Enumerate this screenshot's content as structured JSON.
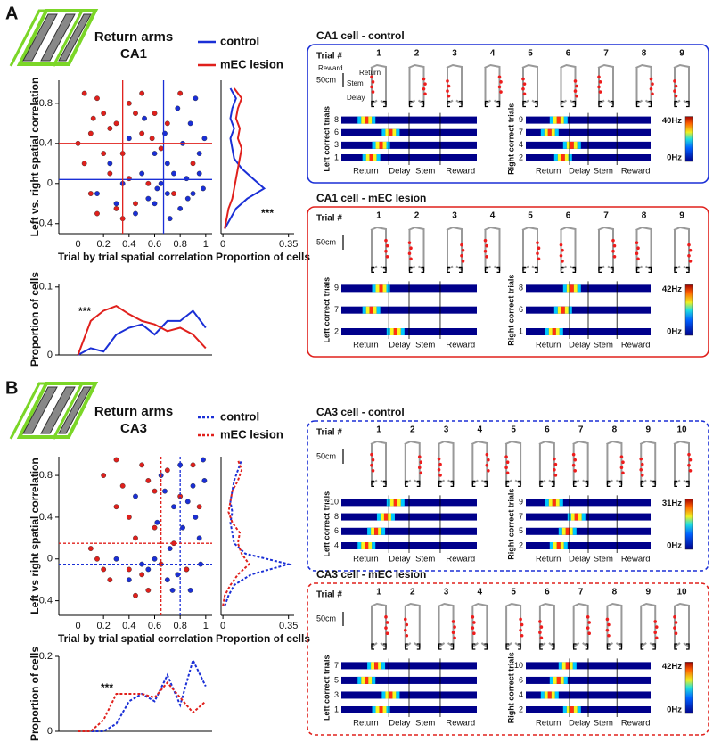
{
  "chart_data": [
    {
      "type": "scatter",
      "title": "Return arms",
      "subtitle": "CA1",
      "x_label": "Trial by trial spatial correlation",
      "y_label": "Left vs. right spatial correlation",
      "xlim": [
        -0.15,
        1.05
      ],
      "xticks": [
        0,
        0.2,
        0.4,
        0.6,
        0.8,
        1
      ],
      "ylim": [
        -0.5,
        1.03
      ],
      "yticks": [
        -0.4,
        0,
        0.4,
        0.8
      ],
      "line_style": "solid",
      "series": [
        {
          "name": "control",
          "color": "#1a2fd6",
          "mean_x": 0.67,
          "mean_y": 0.04,
          "x": [
            0.85,
            0.9,
            0.7,
            0.6,
            0.95,
            0.8,
            0.75,
            0.65,
            0.55,
            0.92,
            0.88,
            0.5,
            0.45,
            0.98,
            0.82,
            0.72,
            0.68,
            0.35,
            0.25,
            0.15,
            0.95,
            0.6,
            0.78,
            0.4,
            0.86,
            0.62,
            0.3,
            0.52,
            0.7,
            0.99
          ],
          "values": [
            0.05,
            -0.1,
            0.2,
            -0.2,
            0.3,
            -0.25,
            0.1,
            0.0,
            -0.15,
            0.85,
            0.6,
            0.1,
            -0.3,
            -0.05,
            0.4,
            -0.35,
            0.5,
            0.0,
            0.2,
            -0.1,
            0.1,
            0.3,
            0.75,
            0.45,
            -0.15,
            -0.05,
            -0.2,
            0.65,
            -0.1,
            0.45
          ]
        },
        {
          "name": "mEC lesion",
          "color": "#e0201c",
          "mean_x": 0.35,
          "mean_y": 0.4,
          "x": [
            0.05,
            0.1,
            0.2,
            0.15,
            0.3,
            0.25,
            0.4,
            0.35,
            0.5,
            0.45,
            0.6,
            0.1,
            0.2,
            0.55,
            0.05,
            0.3,
            0.7,
            0.8,
            0.15,
            0.4,
            0.65,
            0.9,
            0.25,
            0.0,
            0.35,
            0.5,
            0.75,
            0.12,
            0.45,
            0.58
          ],
          "values": [
            0.9,
            0.5,
            0.7,
            -0.3,
            0.6,
            0.1,
            0.8,
            0.3,
            0.5,
            -0.2,
            0.7,
            -0.1,
            0.3,
            0.0,
            0.2,
            -0.25,
            0.6,
            0.9,
            0.85,
            0.05,
            0.35,
            0.2,
            0.55,
            0.4,
            -0.35,
            0.9,
            -0.1,
            0.65,
            0.7,
            0.45
          ]
        }
      ]
    },
    {
      "type": "line",
      "orientation": "horizontal",
      "x_label": "Proportion of cells",
      "annotation": "***",
      "line_style": "solid",
      "xlim": [
        -0.01,
        0.38
      ],
      "xticks": [
        0,
        0.35
      ],
      "ylim": [
        -0.5,
        1.03
      ],
      "y": [
        -0.45,
        -0.35,
        -0.25,
        -0.15,
        -0.05,
        0.05,
        0.15,
        0.25,
        0.35,
        0.45,
        0.55,
        0.65,
        0.75,
        0.85,
        0.95
      ],
      "series": [
        {
          "color": "#1a2fd6",
          "values": [
            0.01,
            0.04,
            0.07,
            0.13,
            0.22,
            0.16,
            0.1,
            0.06,
            0.05,
            0.04,
            0.06,
            0.04,
            0.05,
            0.07,
            0.04
          ]
        },
        {
          "color": "#e0201c",
          "values": [
            0.01,
            0.02,
            0.03,
            0.05,
            0.06,
            0.07,
            0.08,
            0.09,
            0.1,
            0.08,
            0.09,
            0.07,
            0.08,
            0.1,
            0.06
          ]
        }
      ]
    },
    {
      "type": "line",
      "y_label": "Proportion of cells",
      "annotation": "***",
      "line_style": "solid",
      "xlim": [
        -0.15,
        1.05
      ],
      "ylim": [
        0,
        0.105
      ],
      "yticks": [
        0,
        0.1
      ],
      "x": [
        0,
        0.1,
        0.2,
        0.3,
        0.4,
        0.5,
        0.6,
        0.7,
        0.8,
        0.9,
        1.0
      ],
      "series": [
        {
          "color": "#1a2fd6",
          "values": [
            0,
            0.01,
            0.005,
            0.03,
            0.04,
            0.045,
            0.03,
            0.05,
            0.05,
            0.065,
            0.04
          ]
        },
        {
          "color": "#e0201c",
          "values": [
            0,
            0.05,
            0.065,
            0.072,
            0.06,
            0.05,
            0.045,
            0.035,
            0.04,
            0.03,
            0.01
          ]
        }
      ]
    },
    {
      "type": "scatter",
      "title": "Return arms",
      "subtitle": "CA3",
      "x_label": "Trial by trial spatial correlation",
      "y_label": "Left vs right spatial correlation",
      "xlim": [
        -0.15,
        1.05
      ],
      "xticks": [
        0,
        0.2,
        0.4,
        0.6,
        0.8,
        1
      ],
      "ylim": [
        -0.54,
        0.98
      ],
      "yticks": [
        -0.4,
        0,
        0.4,
        0.8
      ],
      "line_style": "dashed",
      "series": [
        {
          "name": "control",
          "color": "#1a2fd6",
          "mean_x": 0.8,
          "mean_y": -0.05,
          "x": [
            0.8,
            0.9,
            0.85,
            0.95,
            0.7,
            0.75,
            0.6,
            0.65,
            0.88,
            0.92,
            0.98,
            0.55,
            0.72,
            0.82,
            0.5,
            0.45,
            0.78,
            0.68,
            0.96,
            0.86,
            0.4,
            0.62,
            0.99,
            0.74,
            0.3
          ],
          "values": [
            0.9,
            0.7,
            -0.1,
            0.2,
            -0.2,
            0.5,
            0.0,
            0.8,
            -0.3,
            0.4,
            0.95,
            -0.1,
            0.1,
            0.3,
            -0.05,
            0.6,
            -0.15,
            0.65,
            -0.05,
            0.55,
            -0.2,
            0.35,
            0.75,
            -0.3,
            0.0
          ]
        },
        {
          "name": "mEC lesion",
          "color": "#e0201c",
          "mean_x": 0.65,
          "mean_y": 0.15,
          "x": [
            0.2,
            0.3,
            0.4,
            0.5,
            0.6,
            0.15,
            0.25,
            0.35,
            0.45,
            0.55,
            0.7,
            0.8,
            0.65,
            0.1,
            0.9,
            0.4,
            0.5,
            0.3,
            0.2,
            0.75,
            0.6,
            0.45,
            0.85,
            0.95,
            0.55
          ],
          "values": [
            0.8,
            0.5,
            -0.1,
            0.9,
            0.3,
            0.0,
            -0.2,
            0.7,
            0.2,
            -0.3,
            0.85,
            0.6,
            -0.05,
            0.1,
            0.9,
            0.4,
            -0.15,
            0.95,
            -0.1,
            0.15,
            0.65,
            -0.35,
            -0.1,
            0.5,
            0.75
          ]
        }
      ]
    },
    {
      "type": "line",
      "orientation": "horizontal",
      "x_label": "Proportion of cells",
      "line_style": "dashed",
      "xlim": [
        -0.01,
        0.38
      ],
      "xticks": [
        0,
        0.35
      ],
      "ylim": [
        -0.54,
        0.98
      ],
      "y": [
        -0.45,
        -0.35,
        -0.25,
        -0.15,
        -0.05,
        0.05,
        0.15,
        0.25,
        0.35,
        0.45,
        0.55,
        0.65,
        0.75,
        0.85,
        0.95
      ],
      "series": [
        {
          "color": "#1a2fd6",
          "values": [
            0.01,
            0.03,
            0.06,
            0.15,
            0.35,
            0.12,
            0.06,
            0.05,
            0.04,
            0.05,
            0.04,
            0.05,
            0.06,
            0.08,
            0.1
          ]
        },
        {
          "color": "#e0201c",
          "values": [
            0,
            0.01,
            0.04,
            0.08,
            0.14,
            0.1,
            0.08,
            0.09,
            0.05,
            0.03,
            0.04,
            0.05,
            0.08,
            0.1,
            0.08
          ]
        }
      ]
    },
    {
      "type": "line",
      "y_label": "Proportion of cells",
      "annotation": "***",
      "line_style": "dashed",
      "xlim": [
        -0.15,
        1.05
      ],
      "ylim": [
        0,
        0.2
      ],
      "yticks": [
        0,
        0.2
      ],
      "x": [
        0,
        0.1,
        0.2,
        0.3,
        0.4,
        0.5,
        0.6,
        0.7,
        0.8,
        0.9,
        1.0
      ],
      "series": [
        {
          "color": "#1a2fd6",
          "values": [
            0,
            0,
            0,
            0.02,
            0.08,
            0.1,
            0.08,
            0.15,
            0.07,
            0.19,
            0.12
          ]
        },
        {
          "color": "#e0201c",
          "values": [
            0,
            0,
            0.03,
            0.1,
            0.1,
            0.1,
            0.09,
            0.13,
            0.09,
            0.05,
            0.08
          ]
        }
      ]
    }
  ],
  "panel_labels": [
    "A",
    "B"
  ],
  "cells": [
    {
      "title": "CA1 cell - control",
      "border_color": "#1a2fd6",
      "border_style": "solid",
      "trial_header": "Trial #",
      "trials": [
        "1",
        "2",
        "3",
        "4",
        "5",
        "6",
        "7",
        "8",
        "9"
      ],
      "maze_labels": [
        "Reward",
        "Return",
        "Stem",
        "Delay"
      ],
      "scale": "50cm",
      "left_axis": "Left correct trials",
      "left_rows": [
        "8",
        "6",
        "3",
        "1"
      ],
      "right_axis": "Right correct trials",
      "right_rows": [
        "9",
        "7",
        "4",
        "2"
      ],
      "segments": [
        "Return",
        "Delay",
        "Stem",
        "Reward"
      ],
      "colorbar": [
        "40Hz",
        "0Hz"
      ]
    },
    {
      "title": "CA1 cell - mEC lesion",
      "border_color": "#e0201c",
      "border_style": "solid",
      "trial_header": "Trial #",
      "trials": [
        "1",
        "2",
        "3",
        "4",
        "5",
        "6",
        "7",
        "8",
        "9"
      ],
      "scale": "50cm",
      "left_axis": "Left correct trials",
      "left_rows": [
        "9",
        "7",
        "2"
      ],
      "right_axis": "Right correct trials",
      "right_rows": [
        "8",
        "6",
        "1"
      ],
      "segments": [
        "Return",
        "Delay",
        "Stem",
        "Reward"
      ],
      "colorbar": [
        "42Hz",
        "0Hz"
      ]
    },
    {
      "title": "CA3 cell - control",
      "border_color": "#1a2fd6",
      "border_style": "dashed",
      "trial_header": "Trial #",
      "trials": [
        "1",
        "2",
        "3",
        "4",
        "5",
        "6",
        "7",
        "8",
        "9",
        "10"
      ],
      "scale": "50cm",
      "left_axis": "Left correct trials",
      "left_rows": [
        "10",
        "8",
        "6",
        "4"
      ],
      "right_axis": "Right correct trials",
      "right_rows": [
        "9",
        "7",
        "5",
        "2"
      ],
      "segments": [
        "Return",
        "Delay",
        "Stem",
        "Reward"
      ],
      "colorbar": [
        "31Hz",
        "0Hz"
      ]
    },
    {
      "title": "CA3 cell - mEC lesion",
      "border_color": "#e0201c",
      "border_style": "dashed",
      "trial_header": "Trial #",
      "trials": [
        "1",
        "2",
        "3",
        "4",
        "5",
        "6",
        "7",
        "8",
        "9",
        "10"
      ],
      "scale": "50cm",
      "left_axis": "Left correct trials",
      "left_rows": [
        "7",
        "5",
        "3",
        "1"
      ],
      "right_axis": "Right correct trials",
      "right_rows": [
        "10",
        "6",
        "4",
        "2"
      ],
      "segments": [
        "Return",
        "Delay",
        "Stem",
        "Reward"
      ],
      "colorbar": [
        "42Hz",
        "0Hz"
      ]
    }
  ]
}
